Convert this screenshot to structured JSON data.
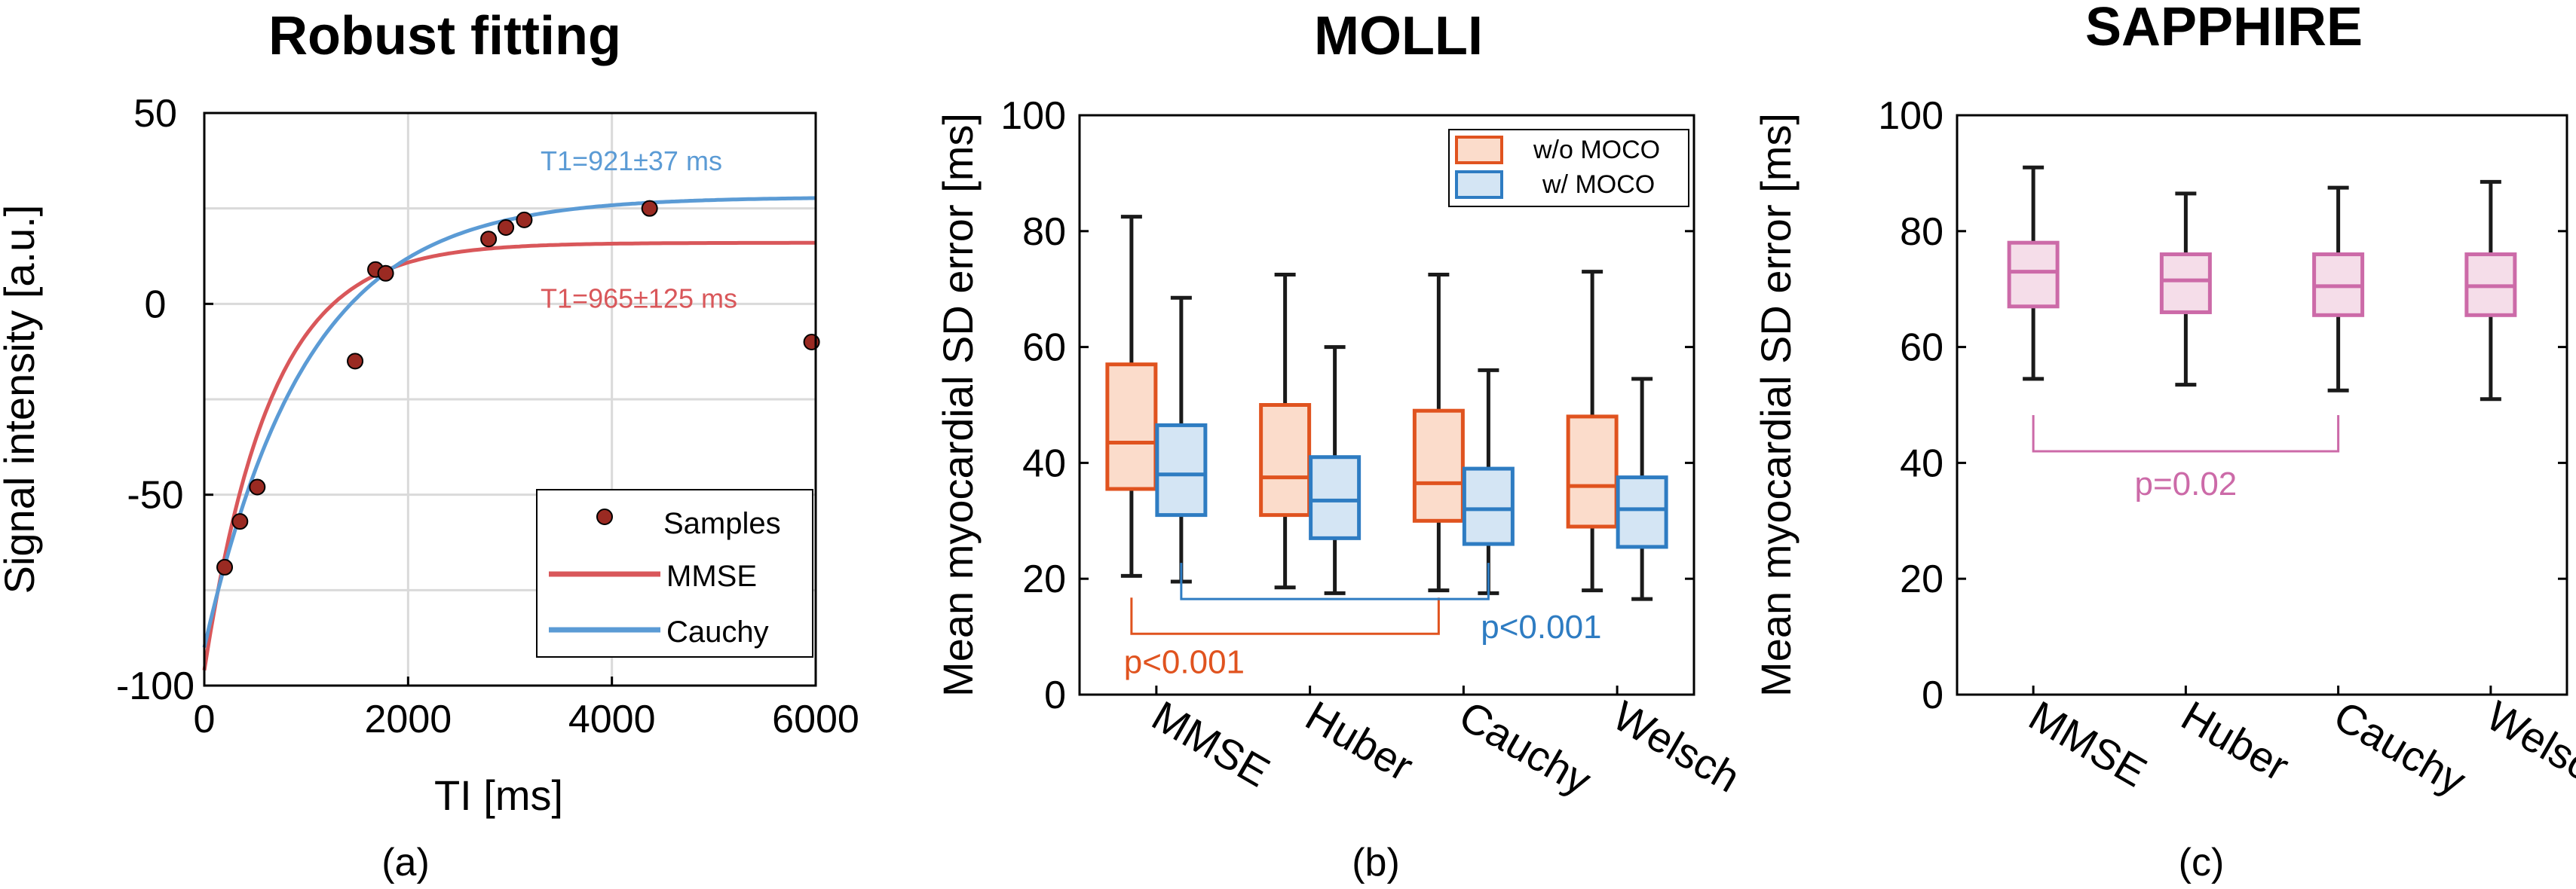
{
  "panel_a": {
    "title": "Robust fitting",
    "caption": "(a)"
  },
  "panel_b": {
    "title": "MOLLI",
    "caption": "(b)"
  },
  "panel_c": {
    "title": "SAPPHIRE",
    "caption": "(c)"
  },
  "colors": {
    "axis": "#000000",
    "grid": "#dadada",
    "samples": "#9a2a22",
    "mmse_fit": "#d9575a",
    "cauchy_fit": "#5b9bd5",
    "wo_moco": "#e0531f",
    "wo_moco_fill": "#fbdccb",
    "w_moco": "#2e7cc2",
    "w_moco_fill": "#d4e5f4",
    "sapphire": "#cc6aa8",
    "sapphire_fill": "#f5dde9",
    "whisker": "#1a1a1a"
  },
  "chart_data": [
    {
      "id": "robust-fitting",
      "type": "scatter",
      "title": "Robust fitting",
      "xlabel": "TI [ms]",
      "ylabel": "Signal intensity [a.u.]",
      "xlim": [
        0,
        6000
      ],
      "ylim": [
        -100,
        50
      ],
      "xticks": [
        0,
        2000,
        4000,
        6000
      ],
      "yticks": [
        -100,
        -50,
        0,
        50
      ],
      "xtick_labels": [
        "0",
        "2000",
        "4000",
        "6000"
      ],
      "ytick_labels": [
        "-100",
        "-50",
        "0",
        "50"
      ],
      "grid": true,
      "legend_position": "bottom-right",
      "series": [
        {
          "name": "Samples",
          "kind": "scatter",
          "x": [
            200,
            350,
            520,
            1480,
            1680,
            1780,
            2790,
            2960,
            3140,
            4370,
            5960
          ],
          "y": [
            -69,
            -57,
            -48,
            -15,
            9,
            8,
            17,
            20,
            22,
            25,
            -10
          ]
        },
        {
          "name": "MMSE",
          "kind": "curve",
          "model": "A - B*exp(-TI/T1*)",
          "A": 16,
          "B": 112,
          "T1_star": 650
        },
        {
          "name": "Cauchy",
          "kind": "curve",
          "model": "A - B*exp(-TI/T1*)",
          "A": 28,
          "B": 118,
          "T1_star": 1000
        }
      ],
      "annotations": [
        {
          "text": "T1=921±37 ms",
          "x": 3300,
          "y": 35,
          "color_key": "cauchy_fit"
        },
        {
          "text": "T1=965±125 ms",
          "x": 3300,
          "y": -1,
          "color_key": "mmse_fit"
        }
      ]
    },
    {
      "id": "molli",
      "type": "box",
      "title": "MOLLI",
      "ylabel": "Mean myocardial SD error [ms]",
      "ylim": [
        0,
        100
      ],
      "yticks": [
        0,
        20,
        40,
        60,
        80,
        100
      ],
      "ytick_labels": [
        "0",
        "20",
        "40",
        "60",
        "80",
        "100"
      ],
      "categories": [
        "MMSE",
        "Huber",
        "Cauchy",
        "Welsch"
      ],
      "legend_position": "top-right",
      "series": [
        {
          "name": "w/o MOCO",
          "boxes": [
            {
              "min": 20.5,
              "q1": 35.5,
              "median": 43.5,
              "q3": 57,
              "max": 82.5
            },
            {
              "min": 18.5,
              "q1": 31,
              "median": 37.5,
              "q3": 50,
              "max": 72.5
            },
            {
              "min": 18,
              "q1": 30,
              "median": 36.5,
              "q3": 49,
              "max": 72.5
            },
            {
              "min": 18,
              "q1": 29,
              "median": 36,
              "q3": 48,
              "max": 73
            }
          ]
        },
        {
          "name": "w/ MOCO",
          "boxes": [
            {
              "min": 19.5,
              "q1": 31,
              "median": 38,
              "q3": 46.5,
              "max": 68.5
            },
            {
              "min": 17.5,
              "q1": 27,
              "median": 33.5,
              "q3": 41,
              "max": 60
            },
            {
              "min": 17.5,
              "q1": 26,
              "median": 32,
              "q3": 39,
              "max": 56
            },
            {
              "min": 16.5,
              "q1": 25.5,
              "median": 32,
              "q3": 37.5,
              "max": 54.5
            }
          ]
        }
      ],
      "significance": [
        {
          "text": "p<0.001",
          "series_index": 0,
          "from_category": 0,
          "to_category": 2,
          "y": 10.5
        },
        {
          "text": "p<0.001",
          "series_index": 1,
          "from_category": 0,
          "to_category": 2,
          "y": 16.5
        }
      ]
    },
    {
      "id": "sapphire",
      "type": "box",
      "title": "SAPPHIRE",
      "ylabel": "Mean myocardial SD error [ms]",
      "ylim": [
        0,
        100
      ],
      "yticks": [
        0,
        20,
        40,
        60,
        80,
        100
      ],
      "ytick_labels": [
        "0",
        "20",
        "40",
        "60",
        "80",
        "100"
      ],
      "categories": [
        "MMSE",
        "Huber",
        "Cauchy",
        "Welsch"
      ],
      "series": [
        {
          "boxes": [
            {
              "min": 54.5,
              "q1": 67,
              "median": 73,
              "q3": 78,
              "max": 91
            },
            {
              "min": 53.5,
              "q1": 66,
              "median": 71.5,
              "q3": 76,
              "max": 86.5
            },
            {
              "min": 52.5,
              "q1": 65.5,
              "median": 70.5,
              "q3": 76,
              "max": 87.5
            },
            {
              "min": 51,
              "q1": 65.5,
              "median": 70.5,
              "q3": 76,
              "max": 88.5
            }
          ]
        }
      ],
      "significance": [
        {
          "text": "p=0.02",
          "from_category": 0,
          "to_category": 2,
          "y": 42
        }
      ]
    }
  ]
}
